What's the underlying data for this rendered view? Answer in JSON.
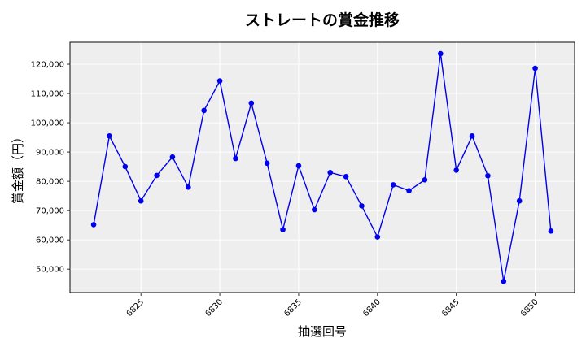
{
  "chart_data": {
    "type": "line",
    "title": "ストレートの賞金推移",
    "xlabel": "抽選回号",
    "ylabel": "賞金額（円）",
    "xlim": [
      6820.5,
      6852.5
    ],
    "ylim": [
      42000,
      127500
    ],
    "xticks": [
      6825,
      6830,
      6835,
      6840,
      6845,
      6850
    ],
    "yticks": [
      50000,
      60000,
      70000,
      80000,
      90000,
      100000,
      110000,
      120000
    ],
    "ytick_labels": [
      "50,000",
      "60,000",
      "70,000",
      "80,000",
      "90,000",
      "100,000",
      "110,000",
      "120,000"
    ],
    "grid": true,
    "colors": {
      "line": "#0000ee",
      "marker": "#0000ee",
      "plot_bg": "#eeeeee",
      "grid": "#ffffff"
    },
    "x": [
      6822,
      6823,
      6824,
      6825,
      6826,
      6827,
      6828,
      6829,
      6830,
      6831,
      6832,
      6833,
      6834,
      6835,
      6836,
      6837,
      6838,
      6839,
      6840,
      6841,
      6842,
      6843,
      6844,
      6845,
      6846,
      6847,
      6848,
      6849,
      6850,
      6851
    ],
    "series": [
      {
        "values": [
          65200,
          95500,
          85000,
          73300,
          82000,
          88300,
          78000,
          104200,
          114300,
          87800,
          106700,
          86200,
          63500,
          85300,
          70300,
          83000,
          81600,
          71600,
          61000,
          78800,
          76800,
          80500,
          123600,
          83800,
          95500,
          81900,
          45800,
          73300,
          118600,
          63000
        ]
      }
    ]
  }
}
